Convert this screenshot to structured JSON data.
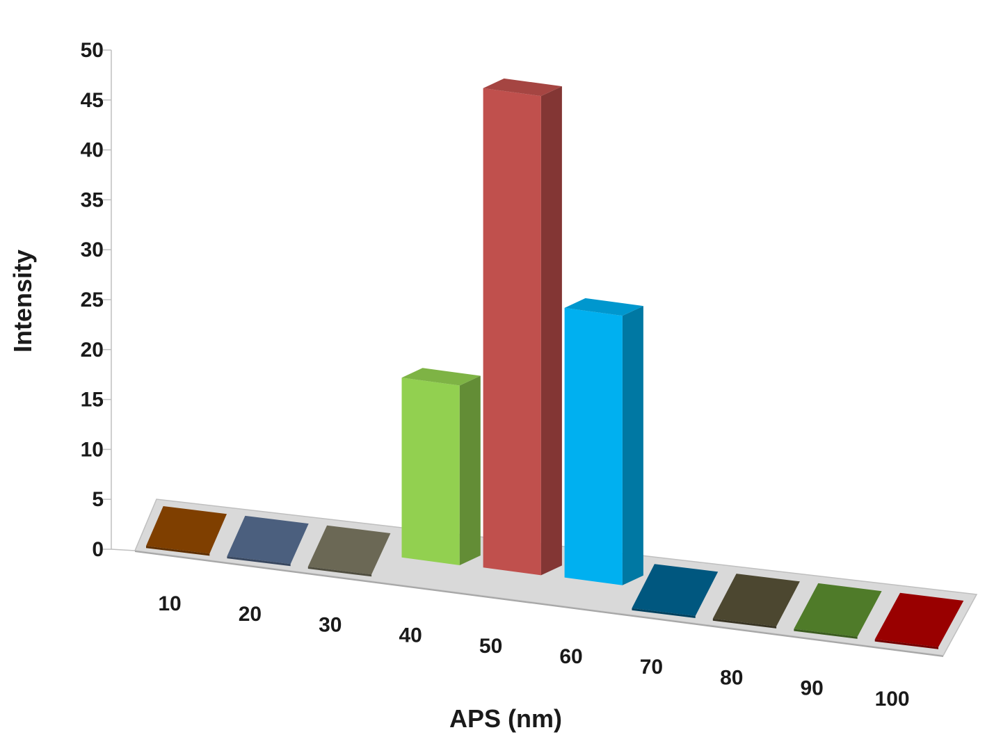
{
  "chart_data": {
    "type": "bar",
    "categories": [
      "10",
      "20",
      "30",
      "40",
      "50",
      "60",
      "70",
      "80",
      "90",
      "100"
    ],
    "values": [
      0,
      0,
      0,
      18,
      48,
      27,
      0,
      0,
      0,
      0
    ],
    "colors": [
      "#7f3f00",
      "#4b5f7e",
      "#6b6855",
      "#92d050",
      "#c0504d",
      "#00b0f0",
      "#00577f",
      "#4c4730",
      "#4f7b29",
      "#990000"
    ],
    "xlabel": "APS (nm)",
    "ylabel": "Intensity",
    "ylim": [
      0,
      50
    ],
    "yticks": [
      0,
      5,
      10,
      15,
      20,
      25,
      30,
      35,
      40,
      45,
      50
    ],
    "grid": false,
    "legend": "none",
    "style": "3d-column"
  }
}
